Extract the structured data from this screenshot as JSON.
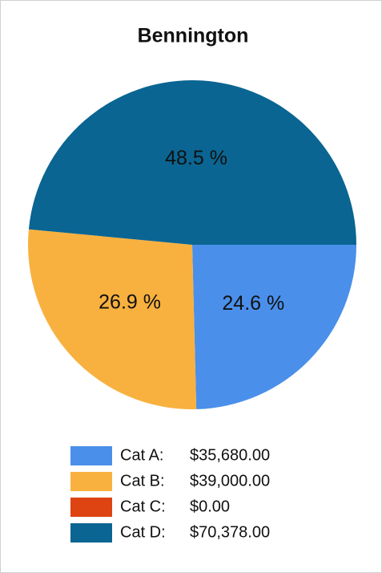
{
  "chart_data": {
    "type": "pie",
    "title": "Bennington",
    "categories": [
      "Cat A:",
      "Cat B:",
      "Cat C:",
      "Cat D:"
    ],
    "values": [
      24.6,
      26.9,
      0,
      48.5
    ],
    "value_labels": [
      "24.6 %",
      "26.9 %",
      null,
      "48.5 %"
    ],
    "amounts": [
      35680,
      39000,
      0,
      70378
    ],
    "amount_labels": [
      "$35,680.00",
      "$39,000.00",
      "$0.00",
      "$70,378.00"
    ],
    "colors": [
      "#4a8fea",
      "#f8b13f",
      "#dd4411",
      "#0a6592"
    ]
  }
}
